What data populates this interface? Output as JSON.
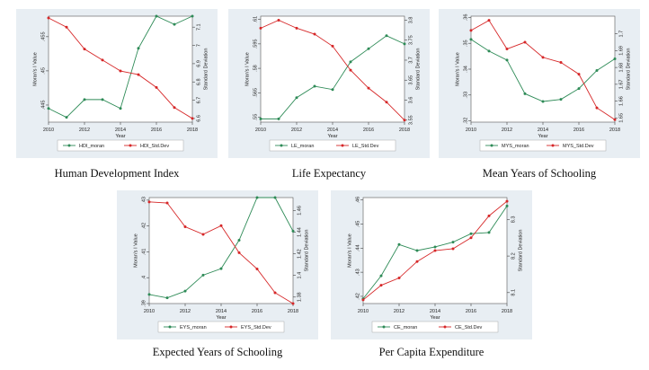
{
  "colors": {
    "moran": "#2e8b57",
    "std": "#d62728",
    "panel_bg": "#e8eef3",
    "plot_bg": "#ffffff"
  },
  "chart_data": [
    {
      "type": "line",
      "caption": "Human Development Index",
      "x": [
        2010,
        2011,
        2012,
        2013,
        2014,
        2015,
        2016,
        2017,
        2018
      ],
      "xticks": [
        2010,
        2012,
        2014,
        2016,
        2018
      ],
      "xlabel": "Year",
      "ylabel_left": "Moran's I Value",
      "ylabel_right": "Standard Deviation",
      "ylim_left": [
        0.4425,
        0.458
      ],
      "ylim_right": [
        6.58,
        7.16
      ],
      "yticks_left": [
        {
          "v": 0.445,
          "t": ".445"
        },
        {
          "v": 0.45,
          "t": ".45"
        },
        {
          "v": 0.455,
          "t": ".455"
        }
      ],
      "yticks_right": [
        {
          "v": 6.6,
          "t": "6.6"
        },
        {
          "v": 6.7,
          "t": "6.7"
        },
        {
          "v": 6.8,
          "t": "6.8"
        },
        {
          "v": 6.9,
          "t": "6.9"
        },
        {
          "v": 7.0,
          "t": "7"
        },
        {
          "v": 7.1,
          "t": "7.1"
        }
      ],
      "series": [
        {
          "name": "HDI_moran",
          "axis": "left",
          "values": [
            0.4445,
            0.4432,
            0.4458,
            0.4458,
            0.4445,
            0.4533,
            0.458,
            0.4568,
            0.458
          ]
        },
        {
          "name": "HDI_Std.Dev",
          "axis": "right",
          "values": [
            7.15,
            7.1,
            6.98,
            6.92,
            6.86,
            6.84,
            6.77,
            6.66,
            6.6
          ]
        }
      ],
      "legend": "bottom"
    },
    {
      "type": "line",
      "caption": "Life Expectancy",
      "x": [
        2010,
        2011,
        2012,
        2013,
        2014,
        2015,
        2016,
        2017,
        2018
      ],
      "xticks": [
        2010,
        2012,
        2014,
        2016,
        2018
      ],
      "xlabel": "Year",
      "ylabel_left": "Moran's I Value",
      "ylabel_right": "Standard Deviation",
      "ylim_left": [
        0.547,
        0.612
      ],
      "ylim_right": [
        3.545,
        3.81
      ],
      "yticks_left": [
        {
          "v": 0.55,
          "t": ".55"
        },
        {
          "v": 0.565,
          "t": ".565"
        },
        {
          "v": 0.58,
          "t": ".58"
        },
        {
          "v": 0.595,
          "t": ".595"
        },
        {
          "v": 0.61,
          "t": ".61"
        }
      ],
      "yticks_right": [
        {
          "v": 3.55,
          "t": "3.55"
        },
        {
          "v": 3.6,
          "t": "3.6"
        },
        {
          "v": 3.65,
          "t": "3.65"
        },
        {
          "v": 3.7,
          "t": "3.7"
        },
        {
          "v": 3.75,
          "t": "3.75"
        },
        {
          "v": 3.8,
          "t": "3.8"
        }
      ],
      "series": [
        {
          "name": "LE_moran",
          "axis": "left",
          "values": [
            0.549,
            0.549,
            0.562,
            0.569,
            0.567,
            0.584,
            0.592,
            0.6,
            0.595
          ]
        },
        {
          "name": "LE_Std.Dev",
          "axis": "right",
          "values": [
            3.78,
            3.8,
            3.78,
            3.765,
            3.735,
            3.675,
            3.63,
            3.595,
            3.55
          ]
        }
      ],
      "legend": "bottom"
    },
    {
      "type": "line",
      "caption": "Mean Years of Schooling",
      "x": [
        2010,
        2011,
        2012,
        2013,
        2014,
        2015,
        2016,
        2017,
        2018
      ],
      "xticks": [
        2010,
        2012,
        2014,
        2016,
        2018
      ],
      "xlabel": "Year",
      "ylabel_left": "Moran's I Value",
      "ylabel_right": "Standard Deviation",
      "ylim_left": [
        0.3195,
        0.3605
      ],
      "ylim_right": [
        1.6475,
        1.7105
      ],
      "yticks_left": [
        {
          "v": 0.32,
          "t": ".32"
        },
        {
          "v": 0.33,
          "t": ".33"
        },
        {
          "v": 0.34,
          "t": ".34"
        },
        {
          "v": 0.35,
          "t": ".35"
        },
        {
          "v": 0.36,
          "t": ".36"
        }
      ],
      "yticks_right": [
        {
          "v": 1.65,
          "t": "1.65"
        },
        {
          "v": 1.66,
          "t": "1.66"
        },
        {
          "v": 1.67,
          "t": "1.67"
        },
        {
          "v": 1.68,
          "t": "1.68"
        },
        {
          "v": 1.69,
          "t": "1.69"
        },
        {
          "v": 1.7,
          "t": "1.7"
        }
      ],
      "series": [
        {
          "name": "MYS_moran",
          "axis": "left",
          "values": [
            0.3515,
            0.347,
            0.3435,
            0.3305,
            0.3275,
            0.3283,
            0.3325,
            0.3395,
            0.344
          ]
        },
        {
          "name": "MYS_Std.Dev",
          "axis": "right",
          "values": [
            1.702,
            1.708,
            1.691,
            1.695,
            1.686,
            1.683,
            1.676,
            1.656,
            1.649
          ]
        }
      ],
      "legend": "bottom"
    },
    {
      "type": "line",
      "caption": "Expected Years of Schooling",
      "x": [
        2010,
        2011,
        2012,
        2013,
        2014,
        2015,
        2016,
        2017,
        2018
      ],
      "xticks": [
        2010,
        2012,
        2014,
        2016,
        2018
      ],
      "xlabel": "Year",
      "ylabel_left": "Moran's I Value",
      "ylabel_right": "Standard Deviation",
      "ylim_left": [
        0.39,
        0.431
      ],
      "ylim_right": [
        1.374,
        1.472
      ],
      "yticks_left": [
        {
          "v": 0.39,
          "t": ".39"
        },
        {
          "v": 0.4,
          "t": ".4"
        },
        {
          "v": 0.41,
          "t": ".41"
        },
        {
          "v": 0.42,
          "t": ".42"
        },
        {
          "v": 0.43,
          "t": ".43"
        }
      ],
      "yticks_right": [
        {
          "v": 1.38,
          "t": "1.38"
        },
        {
          "v": 1.4,
          "t": "1.4"
        },
        {
          "v": 1.42,
          "t": "1.42"
        },
        {
          "v": 1.44,
          "t": "1.44"
        },
        {
          "v": 1.46,
          "t": "1.46"
        }
      ],
      "series": [
        {
          "name": "EYS_moran",
          "axis": "left",
          "values": [
            0.3935,
            0.3922,
            0.3948,
            0.401,
            0.4035,
            0.4145,
            0.431,
            0.431,
            0.418
          ]
        },
        {
          "name": "EYS_Std.Dev",
          "axis": "right",
          "values": [
            1.468,
            1.467,
            1.445,
            1.438,
            1.446,
            1.421,
            1.406,
            1.384,
            1.374
          ]
        }
      ],
      "legend": "bottom"
    },
    {
      "type": "line",
      "caption": "Per Capita Expenditure",
      "x": [
        2010,
        2011,
        2012,
        2013,
        2014,
        2015,
        2016,
        2017,
        2018
      ],
      "xticks": [
        2010,
        2012,
        2014,
        2016,
        2018
      ],
      "xlabel": "Year",
      "ylabel_left": "Moran's I Value",
      "ylabel_right": "Standard Deviation",
      "ylim_left": [
        0.417,
        0.461
      ],
      "ylim_right": [
        8.07,
        8.36
      ],
      "yticks_left": [
        {
          "v": 0.42,
          "t": ".42"
        },
        {
          "v": 0.43,
          "t": ".43"
        },
        {
          "v": 0.44,
          "t": ".44"
        },
        {
          "v": 0.45,
          "t": ".45"
        },
        {
          "v": 0.46,
          "t": ".46"
        }
      ],
      "yticks_right": [
        {
          "v": 8.1,
          "t": "8.1"
        },
        {
          "v": 8.2,
          "t": "8.2"
        },
        {
          "v": 8.3,
          "t": "8.3"
        }
      ],
      "series": [
        {
          "name": "CE_moran",
          "axis": "left",
          "values": [
            0.419,
            0.4285,
            0.4415,
            0.439,
            0.4405,
            0.4425,
            0.446,
            0.4465,
            0.4575
          ]
        },
        {
          "name": "CE_Std.Dev",
          "axis": "right",
          "values": [
            8.08,
            8.12,
            8.14,
            8.185,
            8.215,
            8.22,
            8.25,
            8.31,
            8.35
          ]
        }
      ],
      "legend": "bottom"
    }
  ]
}
